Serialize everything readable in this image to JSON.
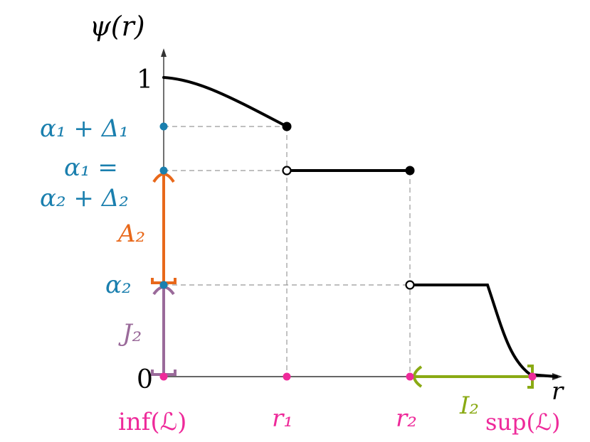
{
  "figure": {
    "y_axis_label": "ψ(r)",
    "x_axis_label": "r",
    "y_ticks": {
      "one": "1",
      "zero": "0",
      "alpha1_plus_delta1": "α₁ + Δ₁",
      "alpha1_eq_line1": "α₁ =",
      "alpha1_eq_line2": "α₂ + Δ₂",
      "alpha2": "α₂"
    },
    "x_ticks": {
      "inf": "inf(ℒ)",
      "r1": "r₁",
      "r2": "r₂",
      "sup": "sup(ℒ)"
    },
    "interval_labels": {
      "A2": "A₂",
      "J2": "J₂",
      "I2": "I₂"
    },
    "colors": {
      "blue": "#1a7fae",
      "pink": "#ee2a9a",
      "orange": "#e8681a",
      "purple": "#9a6a9a",
      "green": "#8aaa14",
      "curve": "#000000",
      "axis": "#333333",
      "guide": "#999999"
    }
  }
}
